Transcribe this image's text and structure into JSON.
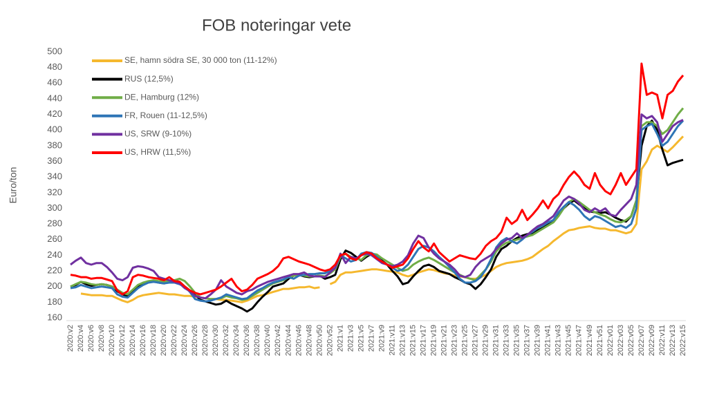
{
  "chart_data": {
    "type": "line",
    "title": "FOB noteringar vete",
    "y_label": "Euro/ton",
    "ylim": [
      160,
      500
    ],
    "yticks": [
      160,
      180,
      200,
      220,
      240,
      260,
      280,
      300,
      320,
      340,
      360,
      380,
      400,
      420,
      440,
      460,
      480,
      500
    ],
    "grid": false,
    "legend": "top-left",
    "categories": [
      "2020:v2",
      null,
      "2020:v4",
      null,
      "2020:v6",
      null,
      "2020:v8",
      null,
      "2020:v10",
      null,
      "2020:v12",
      null,
      "2020:v14",
      null,
      "2020:v16",
      null,
      "2020:v18",
      null,
      "2020:v20",
      null,
      "2020:v22",
      null,
      "2020:v24",
      null,
      "2020:v26",
      null,
      "2020:v28",
      null,
      "2020:v30",
      null,
      "2020:v32",
      null,
      "2020:v34",
      null,
      "2020:v36",
      null,
      "2020:v38",
      null,
      "2020:v40",
      null,
      "2020:v42",
      null,
      "2020:v44",
      null,
      "2020:v46",
      null,
      "2020:v48",
      null,
      "2020:v50",
      null,
      "2020:v52",
      null,
      "2021:v1",
      null,
      "2021:v3",
      null,
      "2021:v5",
      null,
      "2021:v7",
      null,
      "2021:v9",
      null,
      "2021:v11",
      null,
      "2021:v13",
      null,
      "2021:v15",
      null,
      "2021:v17",
      null,
      "2021:v19",
      null,
      "2021:v21",
      null,
      "2021:v23",
      null,
      "2021:v25",
      null,
      "2021:v27",
      null,
      "2021:v29",
      null,
      "2021:v31",
      null,
      "2021:v33",
      null,
      "2021:v35",
      null,
      "2021:v37",
      null,
      "2021:v39",
      null,
      "2021:v41",
      null,
      "2021:v43",
      null,
      "2021:v45",
      null,
      "2021:v47",
      null,
      "2021:v49",
      null,
      "2021:v51",
      null,
      "2022:v01",
      null,
      "2022:v03",
      null,
      "2022:v05",
      null,
      "2022:v07",
      null,
      "2022:v09",
      null,
      "2022:v11",
      null,
      "2022:v13",
      null,
      "2022:v15"
    ],
    "series": [
      {
        "name": "SE, hamn södra SE, 30 000 ton (11-12%)",
        "color": "#f5b82e",
        "values": [
          null,
          null,
          191,
          190,
          189,
          189,
          189,
          188,
          188,
          185,
          182,
          180,
          183,
          187,
          189,
          190,
          191,
          192,
          191,
          190,
          190,
          189,
          188,
          188,
          187,
          186,
          185,
          184,
          184,
          183,
          183,
          182,
          181,
          180,
          182,
          185,
          188,
          189,
          191,
          193,
          195,
          197,
          197,
          198,
          199,
          199,
          200,
          198,
          199,
          null,
          203,
          206,
          215,
          218,
          218,
          219,
          220,
          221,
          222,
          222,
          221,
          220,
          219,
          218,
          215,
          213,
          215,
          218,
          220,
          222,
          221,
          219,
          217,
          216,
          214,
          213,
          212,
          210,
          210,
          212,
          215,
          220,
          225,
          228,
          230,
          231,
          232,
          233,
          235,
          238,
          243,
          248,
          252,
          258,
          263,
          268,
          272,
          273,
          275,
          276,
          277,
          275,
          274,
          274,
          272,
          272,
          270,
          268,
          270,
          280,
          350,
          360,
          375,
          380,
          376,
          372,
          378,
          385,
          392
        ]
      },
      {
        "name": "RUS (12,5%)",
        "color": "#000000",
        "values": [
          200,
          202,
          206,
          203,
          201,
          202,
          203,
          202,
          200,
          194,
          190,
          188,
          195,
          200,
          203,
          206,
          207,
          205,
          204,
          206,
          208,
          206,
          200,
          195,
          190,
          183,
          181,
          179,
          177,
          178,
          182,
          178,
          175,
          172,
          168,
          172,
          180,
          187,
          193,
          200,
          202,
          204,
          210,
          214,
          215,
          213,
          212,
          213,
          214,
          210,
          212,
          215,
          235,
          246,
          243,
          238,
          233,
          238,
          242,
          240,
          233,
          228,
          220,
          213,
          203,
          205,
          213,
          220,
          226,
          228,
          225,
          220,
          218,
          216,
          212,
          209,
          205,
          203,
          197,
          203,
          212,
          222,
          238,
          248,
          252,
          258,
          262,
          265,
          267,
          268,
          272,
          275,
          280,
          285,
          292,
          300,
          306,
          310,
          305,
          300,
          296,
          295,
          294,
          295,
          292,
          288,
          285,
          283,
          290,
          310,
          380,
          405,
          412,
          400,
          375,
          355,
          358,
          360,
          362
        ]
      },
      {
        "name": "DE, Hamburg (12%)",
        "color": "#70ad47",
        "values": [
          200,
          203,
          206,
          205,
          203,
          202,
          203,
          202,
          200,
          196,
          192,
          190,
          196,
          202,
          205,
          207,
          208,
          207,
          206,
          207,
          208,
          210,
          207,
          200,
          192,
          186,
          185,
          184,
          184,
          185,
          188,
          186,
          185,
          183,
          184,
          188,
          192,
          196,
          200,
          204,
          206,
          208,
          212,
          214,
          215,
          214,
          213,
          213,
          214,
          213,
          217,
          222,
          238,
          242,
          238,
          236,
          234,
          240,
          242,
          241,
          236,
          232,
          228,
          224,
          220,
          222,
          228,
          232,
          235,
          237,
          234,
          230,
          226,
          222,
          218,
          215,
          212,
          210,
          208,
          215,
          222,
          232,
          245,
          252,
          256,
          258,
          260,
          262,
          264,
          266,
          270,
          274,
          278,
          282,
          290,
          300,
          308,
          312,
          308,
          303,
          298,
          295,
          292,
          290,
          286,
          283,
          282,
          285,
          290,
          310,
          405,
          410,
          410,
          405,
          395,
          400,
          410,
          420,
          428
        ]
      },
      {
        "name": "FR, Rouen (11-12,5%)",
        "color": "#2e75b6",
        "values": [
          198,
          199,
          202,
          200,
          198,
          199,
          200,
          199,
          198,
          190,
          187,
          186,
          192,
          198,
          202,
          205,
          206,
          205,
          204,
          205,
          205,
          203,
          200,
          193,
          184,
          182,
          181,
          182,
          184,
          186,
          190,
          188,
          186,
          184,
          185,
          190,
          195,
          198,
          202,
          205,
          207,
          209,
          212,
          210,
          214,
          215,
          216,
          216,
          217,
          217,
          220,
          224,
          240,
          236,
          232,
          234,
          242,
          244,
          243,
          238,
          232,
          228,
          224,
          220,
          222,
          228,
          238,
          248,
          252,
          250,
          245,
          238,
          232,
          225,
          218,
          210,
          205,
          205,
          207,
          212,
          222,
          235,
          250,
          258,
          262,
          258,
          255,
          260,
          266,
          270,
          275,
          278,
          282,
          285,
          295,
          302,
          308,
          304,
          298,
          290,
          285,
          290,
          288,
          284,
          280,
          276,
          278,
          275,
          280,
          300,
          400,
          405,
          408,
          395,
          380,
          385,
          395,
          405,
          412
        ]
      },
      {
        "name": "US, SRW (9-10%)",
        "color": "#7030a0",
        "values": [
          228,
          233,
          237,
          230,
          228,
          230,
          230,
          225,
          218,
          210,
          208,
          212,
          224,
          226,
          225,
          223,
          220,
          212,
          210,
          208,
          206,
          204,
          198,
          194,
          188,
          186,
          185,
          190,
          196,
          208,
          200,
          196,
          192,
          190,
          194,
          196,
          200,
          203,
          206,
          208,
          210,
          212,
          214,
          216,
          216,
          218,
          214,
          213,
          213,
          212,
          218,
          224,
          242,
          230,
          238,
          236,
          240,
          242,
          240,
          235,
          230,
          228,
          226,
          228,
          232,
          240,
          255,
          265,
          262,
          250,
          242,
          236,
          232,
          228,
          222,
          214,
          212,
          215,
          225,
          232,
          236,
          240,
          248,
          255,
          260,
          262,
          268,
          262,
          266,
          272,
          277,
          280,
          285,
          290,
          300,
          310,
          315,
          312,
          306,
          298,
          295,
          300,
          296,
          300,
          292,
          290,
          298,
          305,
          312,
          330,
          420,
          415,
          418,
          410,
          385,
          395,
          405,
          410,
          413
        ]
      },
      {
        "name": "US, HRW (11,5%)",
        "color": "#ff0000",
        "values": [
          215,
          214,
          212,
          212,
          210,
          211,
          211,
          209,
          207,
          195,
          190,
          194,
          212,
          215,
          214,
          212,
          211,
          210,
          208,
          212,
          207,
          206,
          200,
          195,
          192,
          190,
          192,
          194,
          196,
          200,
          205,
          210,
          200,
          194,
          196,
          202,
          210,
          213,
          216,
          220,
          226,
          236,
          238,
          235,
          232,
          230,
          228,
          225,
          222,
          220,
          222,
          228,
          240,
          242,
          236,
          234,
          240,
          244,
          242,
          236,
          232,
          228,
          224,
          226,
          228,
          236,
          248,
          258,
          250,
          245,
          255,
          244,
          238,
          232,
          236,
          240,
          238,
          236,
          235,
          242,
          252,
          258,
          262,
          270,
          288,
          280,
          285,
          298,
          285,
          292,
          300,
          310,
          300,
          312,
          318,
          330,
          340,
          347,
          340,
          330,
          325,
          345,
          330,
          322,
          318,
          330,
          345,
          330,
          340,
          350,
          485,
          445,
          448,
          445,
          415,
          445,
          450,
          462,
          470
        ]
      }
    ]
  }
}
